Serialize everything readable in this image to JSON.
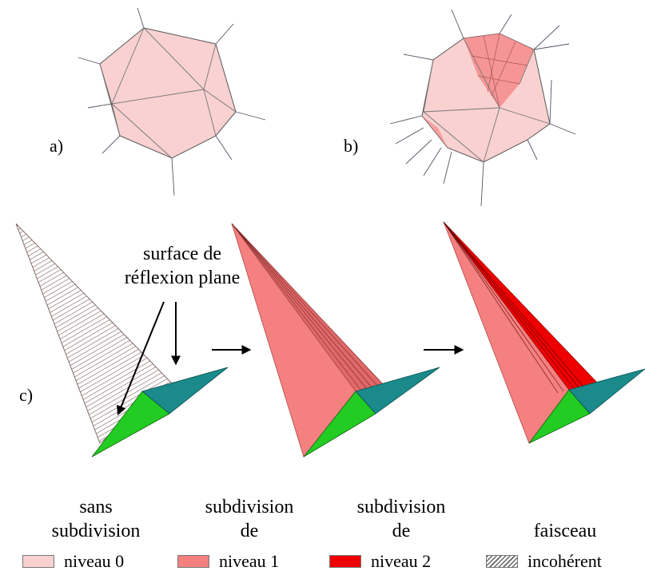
{
  "panels": {
    "a": "a)",
    "b": "b)",
    "c": "c)"
  },
  "annotation": {
    "line1": "surface de",
    "line2": "réflexion plane"
  },
  "legend": {
    "col1": {
      "title1": "sans",
      "title2": "subdivision",
      "label": "niveau 0",
      "color": "#f9d1d1"
    },
    "col2": {
      "title1": "subdivision",
      "title2": "de",
      "label": "niveau 1",
      "color": "#f48080"
    },
    "col3": {
      "title1": "subdivision",
      "title2": "de",
      "label": "niveau 2",
      "color": "#ee0000"
    },
    "col4": {
      "title1": "",
      "title2": "faisceau",
      "label": "incohérent",
      "pattern": "hatched"
    }
  },
  "colors": {
    "green": "#22cc22",
    "teal": "#1a8a8a",
    "pink0": "#f9d1d1",
    "pink1": "#f48080",
    "red2": "#ee0000"
  }
}
